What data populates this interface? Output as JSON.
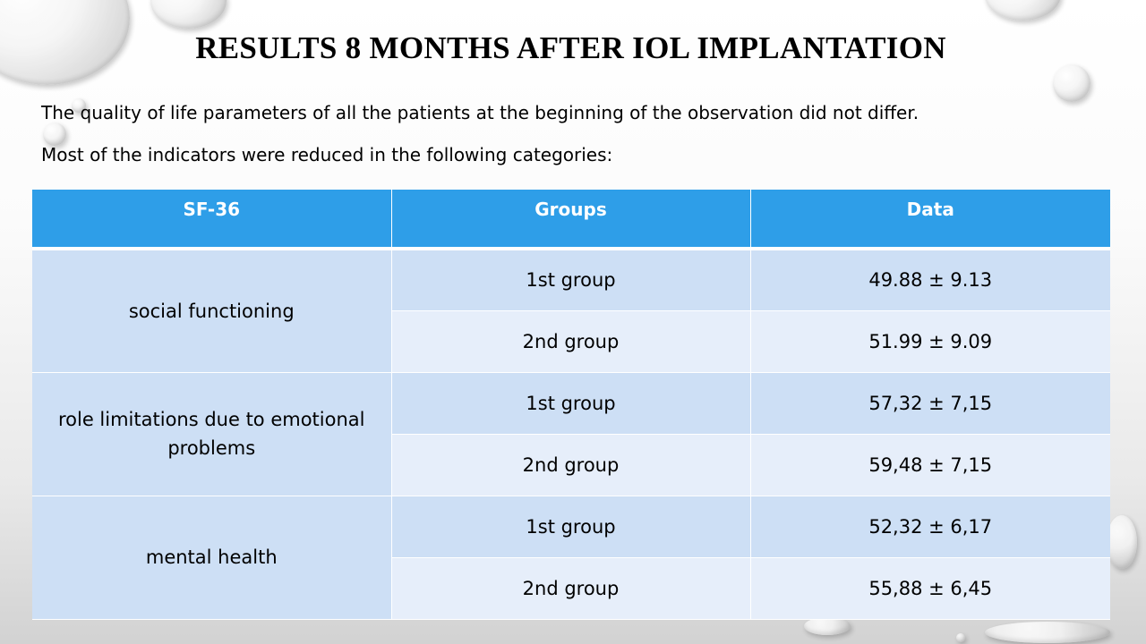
{
  "title": "RESULTS 8 MONTHS AFTER IOL IMPLANTATION",
  "paragraphs": [
    "The quality of life parameters of all the patients at the beginning of the observation did not differ.",
    "Most of the indicators were reduced in the following categories:"
  ],
  "table": {
    "headers": [
      "SF-36",
      "Groups",
      "Data"
    ],
    "categories": [
      {
        "name": "social functioning",
        "rows": [
          {
            "group": "1st group",
            "data": "49.88 ± 9.13"
          },
          {
            "group": "2nd group",
            "data": "51.99 ± 9.09"
          }
        ]
      },
      {
        "name": "role limitations due to emotional problems",
        "rows": [
          {
            "group": "1st group",
            "data": "57,32 ± 7,15"
          },
          {
            "group": "2nd group",
            "data": "59,48 ± 7,15"
          }
        ]
      },
      {
        "name": "mental health",
        "rows": [
          {
            "group": "1st group",
            "data": "52,32 ± 6,17"
          },
          {
            "group": "2nd group",
            "data": "55,88 ± 6,45"
          }
        ]
      }
    ]
  },
  "colors": {
    "header_bg": "#2e9ee8",
    "row_dark": "#cddff5",
    "row_light": "#e6eefa"
  }
}
